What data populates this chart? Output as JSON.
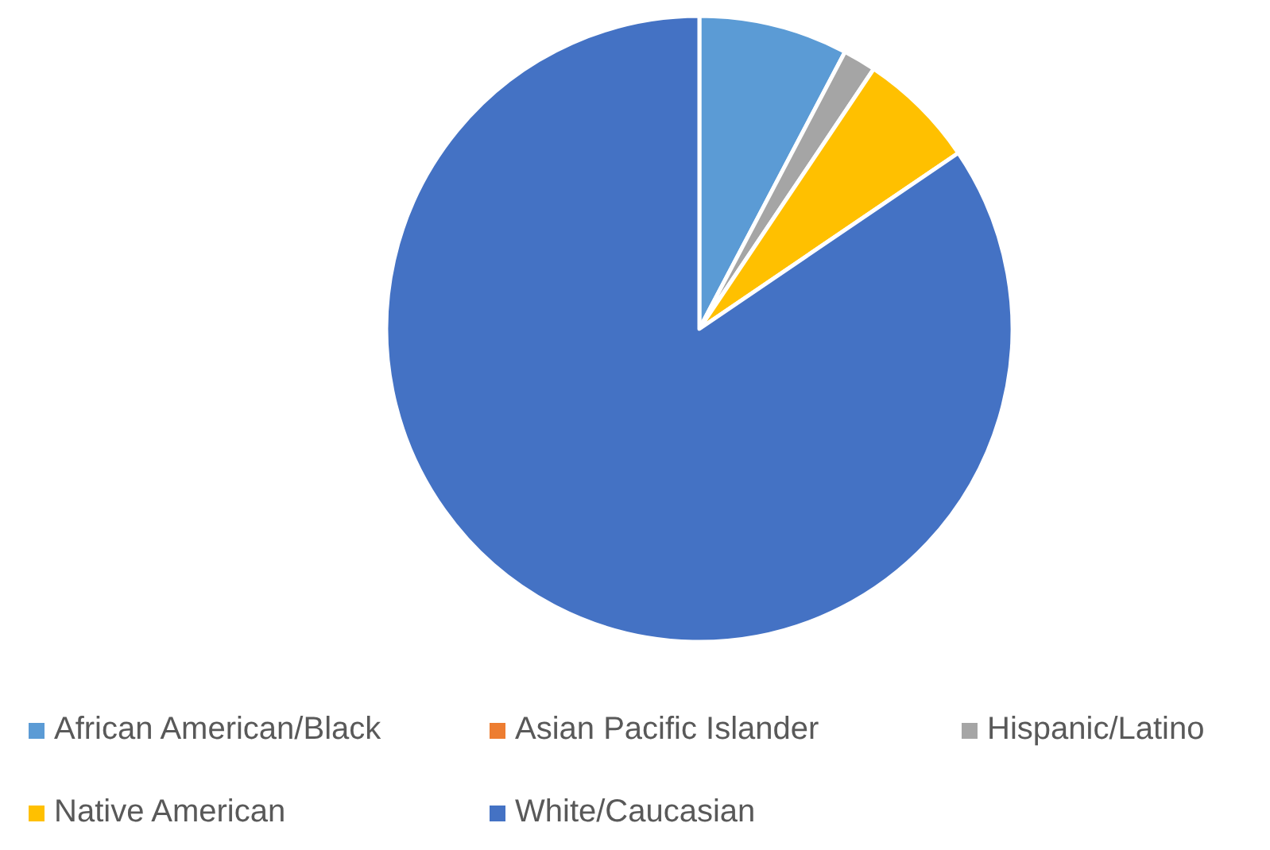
{
  "chart_data": {
    "type": "pie",
    "categories": [
      "African American/Black",
      "Asian Pacific Islander",
      "Hispanic/Latino",
      "Native American",
      "White/Caucasian"
    ],
    "values": [
      7.7,
      0,
      1.7,
      6.1,
      84.5
    ],
    "colors": [
      "#5b9bd5",
      "#ed7d31",
      "#a5a5a5",
      "#ffc000",
      "#4472c4"
    ],
    "legend": "bottom"
  }
}
